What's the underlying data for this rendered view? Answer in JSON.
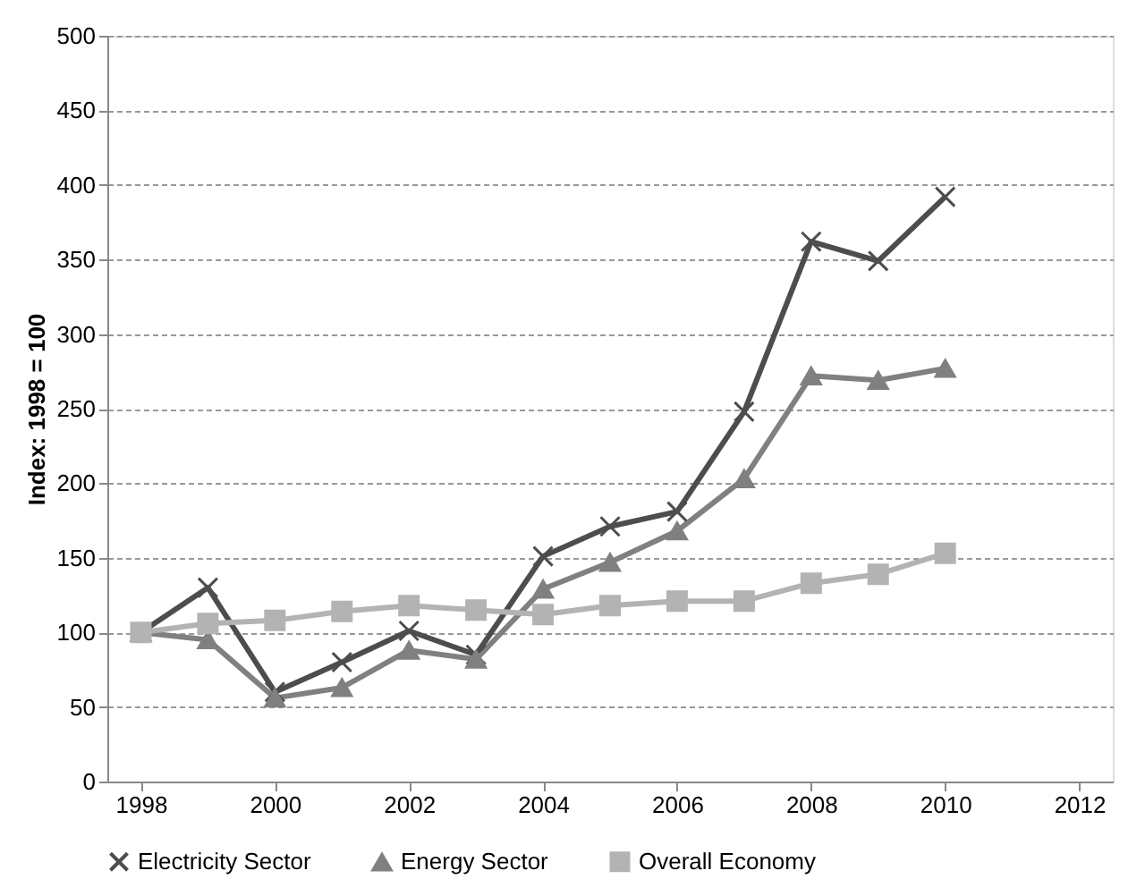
{
  "chart_data": {
    "type": "line",
    "ylabel": "Index: 1998 = 100",
    "x": [
      1998,
      1999,
      2000,
      2001,
      2002,
      2003,
      2004,
      2005,
      2006,
      2007,
      2008,
      2009,
      2010
    ],
    "xlim": [
      1997.5,
      2012.5
    ],
    "xticks": [
      1998,
      2000,
      2002,
      2004,
      2006,
      2008,
      2010,
      2012
    ],
    "ylim": [
      0,
      500
    ],
    "yticks": [
      0,
      50,
      100,
      150,
      200,
      250,
      300,
      350,
      400,
      450,
      500
    ],
    "grid": "y",
    "legend": "bottom",
    "series": [
      {
        "name": "Electricity Sector",
        "color": "#4d4d4d",
        "marker": "cross",
        "values": [
          100,
          130,
          60,
          80,
          101,
          85,
          151,
          171,
          181,
          248,
          362,
          349,
          392
        ]
      },
      {
        "name": "Energy Sector",
        "color": "#808080",
        "marker": "triangle",
        "values": [
          100,
          95,
          56,
          63,
          88,
          82,
          129,
          147,
          168,
          203,
          272,
          269,
          277
        ]
      },
      {
        "name": "Overall Economy",
        "color": "#b3b3b3",
        "marker": "square",
        "values": [
          100,
          106,
          108,
          114,
          118,
          115,
          112,
          118,
          121,
          121,
          133,
          139,
          153
        ]
      }
    ]
  }
}
